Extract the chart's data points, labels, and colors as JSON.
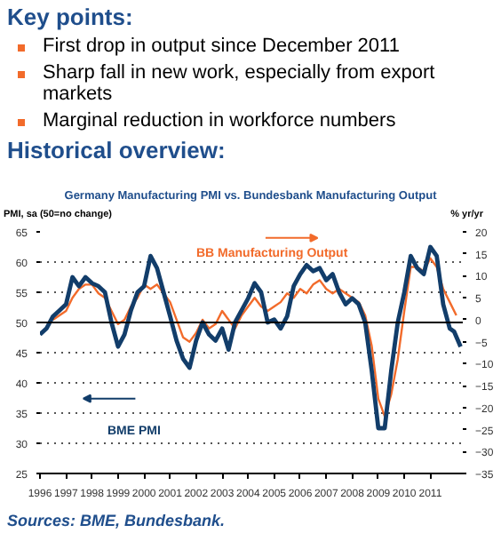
{
  "chart_data": {
    "type": "line",
    "title": "Germany Manufacturing PMI vs. Bundesbank Manufacturing Output",
    "ylabel": "PMI, sa (50=no change)",
    "y2label": "% yr/yr",
    "annotations": [
      "Key points:",
      "First drop in output since December 2011",
      "Sharp fall in new work, especially from export markets",
      "Marginal reduction in workforce numbers",
      "Historical overview:",
      "Sources: BME, Bundesbank."
    ],
    "series": [
      {
        "name": "BB Manufacturing Output",
        "color": "#f26b2b",
        "axis": "y2",
        "x": [
          "1996-07",
          "1997-01",
          "1997-04",
          "1997-07",
          "1997-10",
          "1998-01",
          "1998-04",
          "1998-07",
          "1998-10",
          "1999-01",
          "1999-04",
          "1999-07",
          "1999-10",
          "2000-01",
          "2000-04",
          "2000-07",
          "2000-10",
          "2001-01",
          "2001-04",
          "2001-07",
          "2001-10",
          "2002-01",
          "2002-04",
          "2002-07",
          "2002-10",
          "2003-01",
          "2003-04",
          "2003-07",
          "2003-10",
          "2004-01",
          "2004-04",
          "2004-07",
          "2004-10",
          "2005-01",
          "2005-04",
          "2005-07",
          "2005-10",
          "2006-01",
          "2006-04",
          "2006-07",
          "2006-10",
          "2007-01",
          "2007-04",
          "2007-07",
          "2007-10",
          "2008-01",
          "2008-04",
          "2008-07",
          "2008-10",
          "2009-01",
          "2009-04",
          "2009-07",
          "2009-10",
          "2010-01",
          "2010-04",
          "2010-07",
          "2010-10",
          "2011-01",
          "2011-04",
          "2011-07",
          "2011-10",
          "2012-01"
        ],
        "values": [
          0,
          2,
          5,
          7,
          8,
          8,
          6,
          5,
          2,
          -1,
          0,
          3,
          5,
          8,
          7,
          8,
          6,
          4,
          0,
          -4,
          -5,
          -3,
          0,
          -2,
          -1,
          2,
          0,
          -2,
          1,
          3,
          5,
          3,
          2,
          3,
          4,
          6,
          5,
          7,
          6,
          8,
          9,
          7,
          6,
          7,
          6,
          5,
          4,
          1,
          -6,
          -18,
          -22,
          -17,
          -9,
          2,
          12,
          12,
          11,
          14,
          12,
          7,
          4,
          1
        ]
      },
      {
        "name": "BME PMI",
        "color": "#123d6a",
        "axis": "y",
        "x": [
          "1996-01",
          "1996-04",
          "1996-07",
          "1996-10",
          "1997-01",
          "1997-04",
          "1997-07",
          "1997-10",
          "1998-01",
          "1998-04",
          "1998-07",
          "1998-10",
          "1999-01",
          "1999-04",
          "1999-07",
          "1999-10",
          "2000-01",
          "2000-04",
          "2000-07",
          "2000-10",
          "2001-01",
          "2001-04",
          "2001-07",
          "2001-10",
          "2002-01",
          "2002-04",
          "2002-07",
          "2002-10",
          "2003-01",
          "2003-04",
          "2003-07",
          "2003-10",
          "2004-01",
          "2004-04",
          "2004-07",
          "2004-10",
          "2005-01",
          "2005-04",
          "2005-07",
          "2005-10",
          "2006-01",
          "2006-04",
          "2006-07",
          "2006-10",
          "2007-01",
          "2007-04",
          "2007-07",
          "2007-10",
          "2008-01",
          "2008-04",
          "2008-07",
          "2008-10",
          "2009-01",
          "2009-04",
          "2009-07",
          "2009-10",
          "2010-01",
          "2010-04",
          "2010-07",
          "2010-10",
          "2011-01",
          "2011-04",
          "2011-07",
          "2011-10",
          "2011-12",
          "2012-03"
        ],
        "values": [
          48,
          49,
          51,
          52,
          53,
          57.5,
          56,
          57.5,
          56.5,
          56,
          55,
          50,
          46,
          48,
          52,
          55,
          56,
          61,
          59,
          55,
          51,
          47,
          44,
          42.5,
          47,
          50,
          48,
          47,
          49,
          45.5,
          50,
          52,
          54,
          56.5,
          55,
          50,
          50.5,
          49,
          51,
          56,
          58,
          59.5,
          58.5,
          59,
          57,
          58,
          55,
          53,
          54,
          53,
          50,
          42,
          32.5,
          32.5,
          42,
          50,
          55,
          61,
          59,
          58,
          62.5,
          61,
          53,
          49,
          48.5,
          46
        ]
      }
    ],
    "xlim": [
      "1996-01",
      "2012-04"
    ],
    "xticks": [
      "1996",
      "1997",
      "1998",
      "1999",
      "2000",
      "2001",
      "2002",
      "2003",
      "2004",
      "2005",
      "2006",
      "2007",
      "2008",
      "2009",
      "2010",
      "2011"
    ],
    "ylim": [
      25,
      65
    ],
    "yticks": [
      25,
      30,
      35,
      40,
      45,
      50,
      55,
      60,
      65
    ],
    "y2lim": [
      -35,
      20
    ],
    "y2ticks": [
      -35,
      -30,
      -25,
      -20,
      -15,
      -10,
      -5,
      0,
      5,
      10,
      15,
      20
    ],
    "ref_lines": [
      {
        "axis": "y",
        "value": 50,
        "color": "#000000"
      }
    ],
    "grid": "y",
    "legend": "top",
    "marker": "none",
    "line_style": "solid"
  }
}
